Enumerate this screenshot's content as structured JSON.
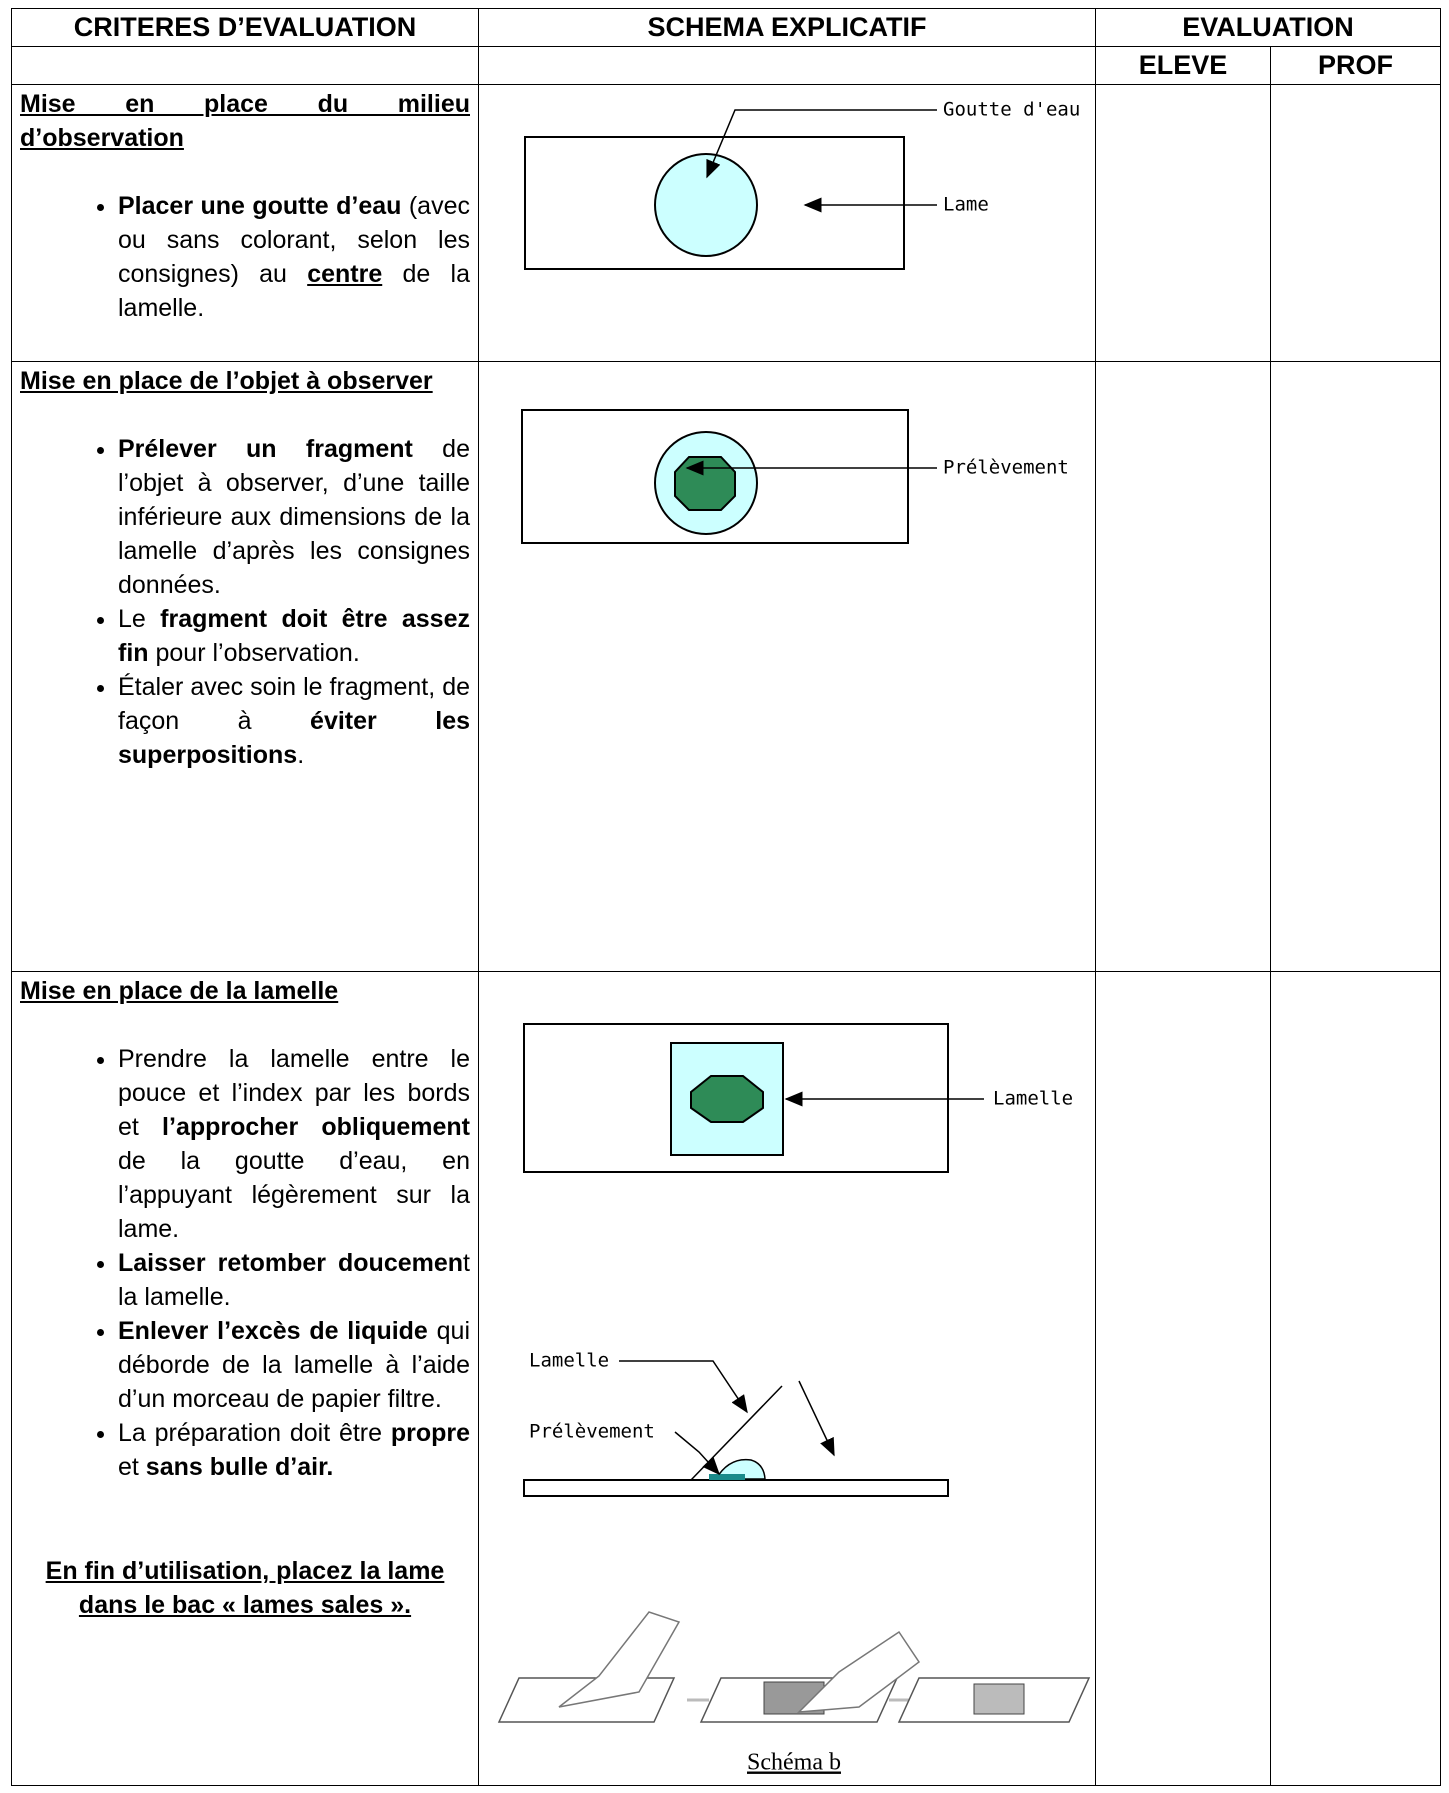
{
  "header": {
    "criteria": "CRITERES D’EVALUATION",
    "schema": "SCHEMA EXPLICATIF",
    "evaluation": "EVALUATION",
    "eleve": "ELEVE",
    "prof": "PROF"
  },
  "rows": [
    {
      "title": "Mise en place du milieu d’observation",
      "bullets": [
        [
          "Placer une goutte d’eau",
          " (avec ou sans colorant, selon les consignes) au ",
          "centre",
          " de la lamelle."
        ]
      ],
      "labels": [
        "Goutte d'eau",
        "Lame"
      ]
    },
    {
      "title": "Mise en place de l’objet à observer",
      "bullets": [
        [
          "Prélever un fragment",
          " de l’objet à observer, d’une taille inférieure aux dimensions de la lamelle d’après les consignes données."
        ],
        [
          "Le ",
          "fragment doit être assez fin",
          " pour l’observation."
        ],
        [
          "Étaler avec soin le fragment, de façon à ",
          "éviter les superpositions",
          "."
        ]
      ],
      "labels": [
        "Prélèvement"
      ]
    },
    {
      "title": "Mise en place de la lamelle",
      "bullets": [
        [
          "Prendre la lamelle entre le pouce et l’index par les bords et ",
          "l’approcher obliquement",
          " de la goutte d’eau, en l’appuyant légèrement sur la lame."
        ],
        [
          "Laisser retomber doucemen",
          "t la lamelle."
        ],
        [
          "Enlever l’excès de liquide",
          " qui déborde de la lamelle à l’aide d’un morceau de papier filtre."
        ],
        [
          "La préparation doit être ",
          "propre",
          " et ",
          "sans bulle d’air."
        ]
      ],
      "note": "En fin d’utilisation, placez la lame dans le bac « lames sales ».",
      "labels": [
        "Lamelle",
        "Lamelle",
        "Prélèvement"
      ],
      "caption": "Schéma b"
    }
  ]
}
